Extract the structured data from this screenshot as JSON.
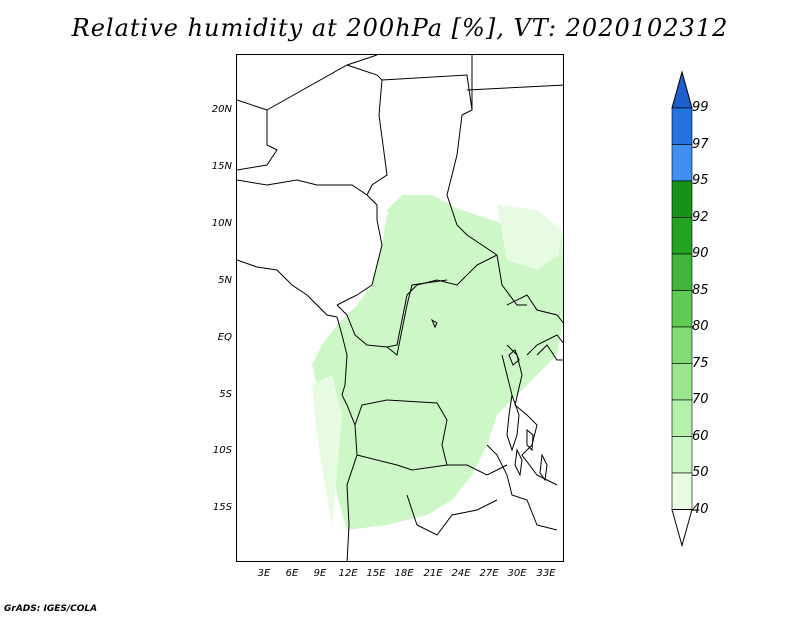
{
  "title": "Relative humidity at 200hPa [%], VT: 2020102312",
  "credit": "GrADS: IGES/COLA",
  "axes": {
    "y_ticks": [
      "20N",
      "15N",
      "10N",
      "5N",
      "EQ",
      "5S",
      "10S",
      "15S"
    ],
    "x_ticks": [
      "3E",
      "6E",
      "9E",
      "12E",
      "15E",
      "18E",
      "21E",
      "24E",
      "27E",
      "30E",
      "33E"
    ]
  },
  "colorbar": {
    "levels": [
      "40",
      "50",
      "60",
      "70",
      "75",
      "80",
      "85",
      "90",
      "92",
      "95",
      "97",
      "99"
    ],
    "colors": [
      "#f5fff3",
      "#e6fbe2",
      "#cdf7c6",
      "#b5f1ab",
      "#9be68f",
      "#82dc75",
      "#60cb53",
      "#3fb63a",
      "#22a322",
      "#16921a",
      "#3d90ef",
      "#2373e0",
      "#1d5fce"
    ]
  }
}
